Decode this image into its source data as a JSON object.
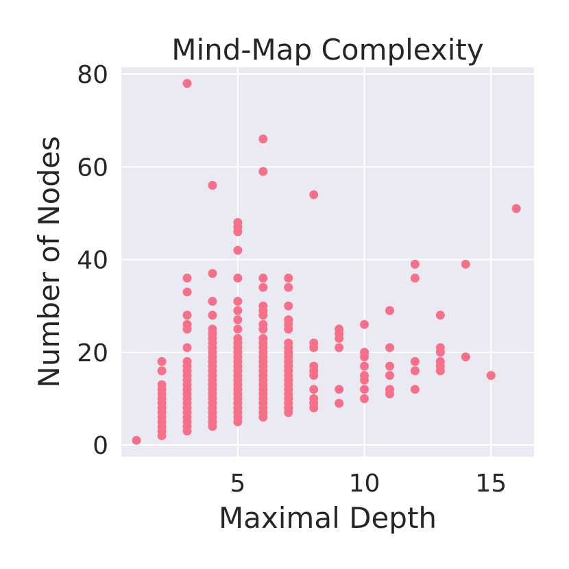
{
  "chart_data": {
    "type": "scatter",
    "title": "Mind-Map Complexity",
    "xlabel": "Maximal Depth",
    "ylabel": "Number of Nodes",
    "xlim": [
      0.4,
      16.7
    ],
    "ylim": [
      -2.5,
      81.5
    ],
    "xticks": [
      5,
      10,
      15
    ],
    "yticks": [
      0,
      20,
      40,
      60,
      80
    ],
    "grid": true,
    "colors": {
      "background": "#EAEAF2",
      "point": "#F7708A",
      "grid": "#FFFFFF",
      "text": "#262626"
    },
    "series": [
      {
        "points": [
          [
            1,
            1
          ],
          [
            2,
            2
          ],
          [
            2,
            3
          ],
          [
            2,
            4
          ],
          [
            2,
            5
          ],
          [
            2,
            6
          ],
          [
            2,
            7
          ],
          [
            2,
            8
          ],
          [
            2,
            9
          ],
          [
            2,
            10
          ],
          [
            2,
            11
          ],
          [
            2,
            12
          ],
          [
            2,
            13
          ],
          [
            2,
            16
          ],
          [
            2,
            18
          ],
          [
            3,
            3
          ],
          [
            3,
            4
          ],
          [
            3,
            5
          ],
          [
            3,
            6
          ],
          [
            3,
            7
          ],
          [
            3,
            8
          ],
          [
            3,
            9
          ],
          [
            3,
            10
          ],
          [
            3,
            11
          ],
          [
            3,
            12
          ],
          [
            3,
            13
          ],
          [
            3,
            14
          ],
          [
            3,
            15
          ],
          [
            3,
            16
          ],
          [
            3,
            17
          ],
          [
            3,
            18
          ],
          [
            3,
            21
          ],
          [
            3,
            25
          ],
          [
            3,
            26
          ],
          [
            3,
            28
          ],
          [
            3,
            33
          ],
          [
            3,
            36
          ],
          [
            3,
            78
          ],
          [
            4,
            4
          ],
          [
            4,
            5
          ],
          [
            4,
            6
          ],
          [
            4,
            7
          ],
          [
            4,
            8
          ],
          [
            4,
            9
          ],
          [
            4,
            10
          ],
          [
            4,
            11
          ],
          [
            4,
            12
          ],
          [
            4,
            13
          ],
          [
            4,
            14
          ],
          [
            4,
            15
          ],
          [
            4,
            16
          ],
          [
            4,
            17
          ],
          [
            4,
            18
          ],
          [
            4,
            19
          ],
          [
            4,
            20
          ],
          [
            4,
            21
          ],
          [
            4,
            22
          ],
          [
            4,
            23
          ],
          [
            4,
            24
          ],
          [
            4,
            25
          ],
          [
            4,
            28
          ],
          [
            4,
            31
          ],
          [
            4,
            37
          ],
          [
            4,
            56
          ],
          [
            5,
            5
          ],
          [
            5,
            6
          ],
          [
            5,
            7
          ],
          [
            5,
            8
          ],
          [
            5,
            9
          ],
          [
            5,
            10
          ],
          [
            5,
            11
          ],
          [
            5,
            12
          ],
          [
            5,
            13
          ],
          [
            5,
            14
          ],
          [
            5,
            15
          ],
          [
            5,
            16
          ],
          [
            5,
            17
          ],
          [
            5,
            18
          ],
          [
            5,
            19
          ],
          [
            5,
            20
          ],
          [
            5,
            21
          ],
          [
            5,
            22
          ],
          [
            5,
            23
          ],
          [
            5,
            25
          ],
          [
            5,
            27
          ],
          [
            5,
            29
          ],
          [
            5,
            31
          ],
          [
            5,
            36
          ],
          [
            5,
            42
          ],
          [
            5,
            46
          ],
          [
            5,
            47
          ],
          [
            5,
            48
          ],
          [
            6,
            6
          ],
          [
            6,
            7
          ],
          [
            6,
            8
          ],
          [
            6,
            9
          ],
          [
            6,
            10
          ],
          [
            6,
            11
          ],
          [
            6,
            12
          ],
          [
            6,
            13
          ],
          [
            6,
            14
          ],
          [
            6,
            15
          ],
          [
            6,
            16
          ],
          [
            6,
            17
          ],
          [
            6,
            18
          ],
          [
            6,
            19
          ],
          [
            6,
            20
          ],
          [
            6,
            21
          ],
          [
            6,
            22
          ],
          [
            6,
            23
          ],
          [
            6,
            25
          ],
          [
            6,
            26
          ],
          [
            6,
            28
          ],
          [
            6,
            29
          ],
          [
            6,
            30
          ],
          [
            6,
            34
          ],
          [
            6,
            36
          ],
          [
            6,
            59
          ],
          [
            6,
            66
          ],
          [
            7,
            7
          ],
          [
            7,
            8
          ],
          [
            7,
            9
          ],
          [
            7,
            10
          ],
          [
            7,
            11
          ],
          [
            7,
            12
          ],
          [
            7,
            13
          ],
          [
            7,
            14
          ],
          [
            7,
            15
          ],
          [
            7,
            16
          ],
          [
            7,
            17
          ],
          [
            7,
            18
          ],
          [
            7,
            19
          ],
          [
            7,
            20
          ],
          [
            7,
            21
          ],
          [
            7,
            22
          ],
          [
            7,
            25
          ],
          [
            7,
            26
          ],
          [
            7,
            27
          ],
          [
            7,
            30
          ],
          [
            7,
            34
          ],
          [
            7,
            36
          ],
          [
            8,
            8
          ],
          [
            8,
            9
          ],
          [
            8,
            10
          ],
          [
            8,
            12
          ],
          [
            8,
            15
          ],
          [
            8,
            16
          ],
          [
            8,
            17
          ],
          [
            8,
            21
          ],
          [
            8,
            22
          ],
          [
            8,
            54
          ],
          [
            9,
            9
          ],
          [
            9,
            12
          ],
          [
            9,
            21
          ],
          [
            9,
            23
          ],
          [
            9,
            24
          ],
          [
            9,
            25
          ],
          [
            10,
            10
          ],
          [
            10,
            12
          ],
          [
            10,
            14
          ],
          [
            10,
            15
          ],
          [
            10,
            17
          ],
          [
            10,
            19
          ],
          [
            10,
            20
          ],
          [
            10,
            26
          ],
          [
            11,
            11
          ],
          [
            11,
            12
          ],
          [
            11,
            15
          ],
          [
            11,
            17
          ],
          [
            11,
            21
          ],
          [
            11,
            29
          ],
          [
            12,
            12
          ],
          [
            12,
            16
          ],
          [
            12,
            18
          ],
          [
            12,
            36
          ],
          [
            12,
            39
          ],
          [
            13,
            16
          ],
          [
            13,
            17
          ],
          [
            13,
            18
          ],
          [
            13,
            20
          ],
          [
            13,
            21
          ],
          [
            13,
            28
          ],
          [
            14,
            19
          ],
          [
            14,
            39
          ],
          [
            15,
            15
          ],
          [
            16,
            51
          ]
        ]
      }
    ]
  }
}
